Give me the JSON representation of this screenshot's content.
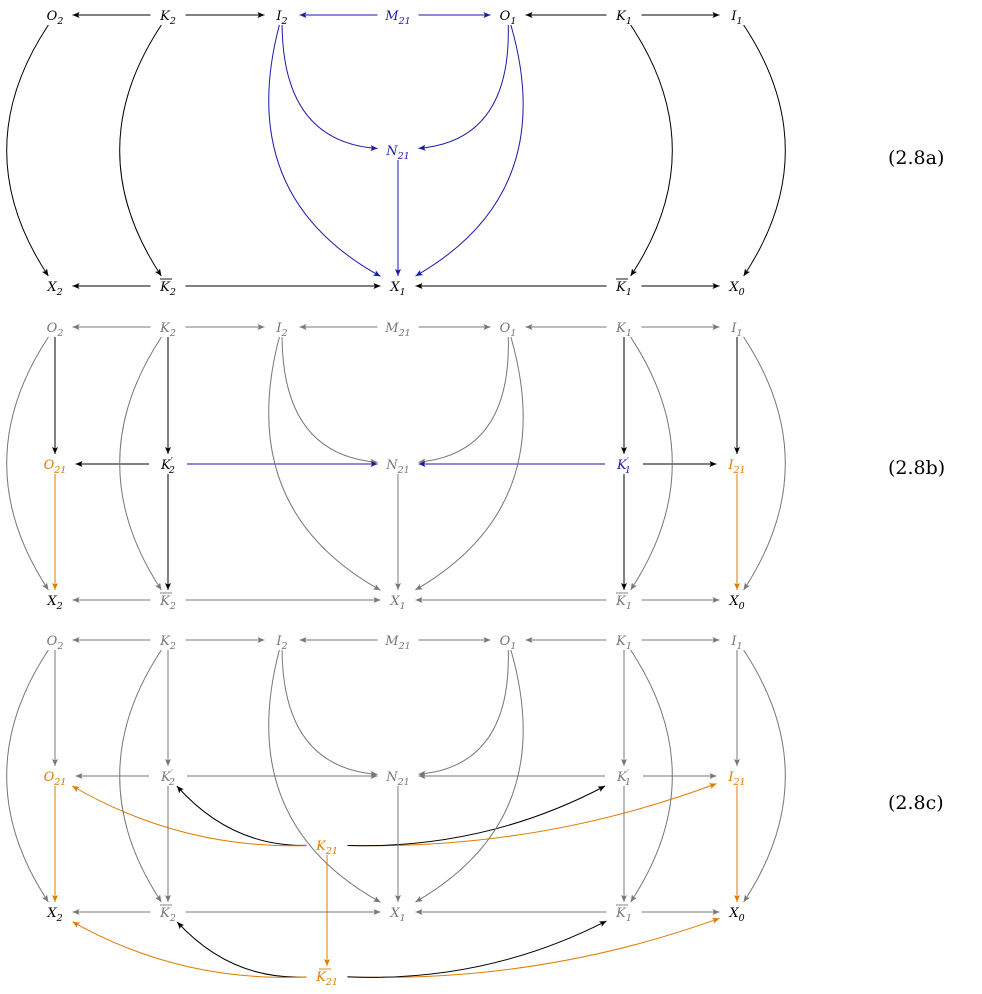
{
  "colors": {
    "black": "#000000",
    "blue": "#1a1aad",
    "orange": "#e07b00",
    "gray": "#777777"
  },
  "equation_labels": {
    "a": "(2.8a)",
    "b": "(2.8b)",
    "c": "(2.8c)"
  },
  "labels": {
    "O2": {
      "base": "O",
      "sub": "2"
    },
    "K2": {
      "base": "K",
      "sub": "2"
    },
    "I2": {
      "base": "I",
      "sub": "2"
    },
    "M21": {
      "base": "M",
      "sub": "21"
    },
    "O1": {
      "base": "O",
      "sub": "1"
    },
    "K1": {
      "base": "K",
      "sub": "1"
    },
    "I1": {
      "base": "I",
      "sub": "1"
    },
    "N21": {
      "base": "N",
      "sub": "21"
    },
    "X2": {
      "base": "X",
      "sub": "2"
    },
    "Kb2": {
      "base": "K",
      "sub": "2",
      "bar": true
    },
    "X1": {
      "base": "X",
      "sub": "1"
    },
    "Kb1": {
      "base": "K",
      "sub": "1",
      "bar": true
    },
    "X0": {
      "base": "X",
      "sub": "0"
    },
    "O21": {
      "base": "O",
      "sub": "21"
    },
    "Kp2": {
      "base": "K",
      "sub": "2",
      "prime": true
    },
    "Kp1": {
      "base": "K",
      "sub": "1",
      "prime": true
    },
    "I21": {
      "base": "I",
      "sub": "21"
    },
    "K21": {
      "base": "K",
      "sub": "21"
    },
    "Kb21": {
      "base": "K",
      "sub": "21",
      "bar": true
    }
  },
  "diagrams": [
    {
      "id": "2.8a",
      "nodes": {
        "O2": "black",
        "K2": "black",
        "I2": "black",
        "M21": "blue",
        "O1": "black",
        "K1": "black",
        "I1": "black",
        "N21": "blue",
        "X2": "black",
        "Kb2": "black",
        "X1": "black",
        "Kb1": "black",
        "X0": "black"
      },
      "edges": [
        {
          "from": "K2",
          "to": "O2",
          "color": "black"
        },
        {
          "from": "K2",
          "to": "I2",
          "color": "black"
        },
        {
          "from": "M21",
          "to": "I2",
          "color": "blue"
        },
        {
          "from": "M21",
          "to": "O1",
          "color": "blue"
        },
        {
          "from": "K1",
          "to": "O1",
          "color": "black"
        },
        {
          "from": "K1",
          "to": "I1",
          "color": "black"
        },
        {
          "from": "Kb2",
          "to": "X2",
          "color": "black"
        },
        {
          "from": "Kb2",
          "to": "X1",
          "color": "black"
        },
        {
          "from": "Kb1",
          "to": "X1",
          "color": "black"
        },
        {
          "from": "Kb1",
          "to": "X0",
          "color": "black"
        },
        {
          "from": "O2",
          "to": "X2",
          "color": "black",
          "bend": "left"
        },
        {
          "from": "K2",
          "to": "Kb2",
          "color": "black",
          "bend": "left"
        },
        {
          "from": "K1",
          "to": "Kb1",
          "color": "black",
          "bend": "right"
        },
        {
          "from": "I1",
          "to": "X0",
          "color": "black",
          "bend": "right"
        },
        {
          "from": "I2",
          "to": "N21",
          "color": "blue",
          "bend": "inner"
        },
        {
          "from": "O1",
          "to": "N21",
          "color": "blue",
          "bend": "inner"
        },
        {
          "from": "N21",
          "to": "X1",
          "color": "blue"
        },
        {
          "from": "I2",
          "to": "X1",
          "color": "blue",
          "bend": "outer"
        },
        {
          "from": "O1",
          "to": "X1",
          "color": "blue",
          "bend": "outer"
        }
      ]
    },
    {
      "id": "2.8b",
      "nodes": {
        "O2": "gray",
        "K2": "gray",
        "I2": "gray",
        "M21": "gray",
        "O1": "gray",
        "K1": "gray",
        "I1": "gray",
        "O21": "orange",
        "Kp2": "black",
        "N21": "gray",
        "Kp1": "blue",
        "I21": "orange",
        "X2": "black",
        "Kb2": "gray",
        "X1": "gray",
        "Kb1": "gray",
        "X0": "black"
      },
      "edges": [
        {
          "from": "K2",
          "to": "O2",
          "color": "gray"
        },
        {
          "from": "K2",
          "to": "I2",
          "color": "gray"
        },
        {
          "from": "M21",
          "to": "I2",
          "color": "gray"
        },
        {
          "from": "M21",
          "to": "O1",
          "color": "gray"
        },
        {
          "from": "K1",
          "to": "O1",
          "color": "gray"
        },
        {
          "from": "K1",
          "to": "I1",
          "color": "gray"
        },
        {
          "from": "Kb2",
          "to": "X2",
          "color": "gray"
        },
        {
          "from": "Kb2",
          "to": "X1",
          "color": "gray"
        },
        {
          "from": "Kb1",
          "to": "X1",
          "color": "gray"
        },
        {
          "from": "Kb1",
          "to": "X0",
          "color": "gray"
        },
        {
          "from": "O2",
          "to": "X2",
          "color": "gray",
          "bend": "left"
        },
        {
          "from": "K2",
          "to": "Kb2",
          "color": "gray",
          "bend": "left"
        },
        {
          "from": "K1",
          "to": "Kb1",
          "color": "gray",
          "bend": "right"
        },
        {
          "from": "I1",
          "to": "X0",
          "color": "gray",
          "bend": "right"
        },
        {
          "from": "I2",
          "to": "N21",
          "color": "gray",
          "bend": "inner"
        },
        {
          "from": "O1",
          "to": "N21",
          "color": "gray",
          "bend": "inner"
        },
        {
          "from": "N21",
          "to": "X1",
          "color": "gray"
        },
        {
          "from": "I2",
          "to": "X1",
          "color": "gray",
          "bend": "outer"
        },
        {
          "from": "O1",
          "to": "X1",
          "color": "gray",
          "bend": "outer"
        },
        {
          "from": "O2",
          "to": "O21",
          "color": "black"
        },
        {
          "from": "K2",
          "to": "Kp2",
          "color": "black"
        },
        {
          "from": "K1",
          "to": "Kp1",
          "color": "black"
        },
        {
          "from": "I1",
          "to": "I21",
          "color": "black"
        },
        {
          "from": "Kp2",
          "to": "O21",
          "color": "black"
        },
        {
          "from": "Kp2",
          "to": "N21",
          "color": "blue"
        },
        {
          "from": "Kp1",
          "to": "N21",
          "color": "blue"
        },
        {
          "from": "Kp1",
          "to": "I21",
          "color": "black"
        },
        {
          "from": "O21",
          "to": "X2",
          "color": "orange"
        },
        {
          "from": "Kp2",
          "to": "Kb2",
          "color": "black"
        },
        {
          "from": "Kp1",
          "to": "Kb1",
          "color": "black"
        },
        {
          "from": "I21",
          "to": "X0",
          "color": "orange"
        }
      ]
    },
    {
      "id": "2.8c",
      "nodes": {
        "O2": "gray",
        "K2": "gray",
        "I2": "gray",
        "M21": "gray",
        "O1": "gray",
        "K1": "gray",
        "I1": "gray",
        "O21": "orange",
        "Kp2": "gray",
        "N21": "gray",
        "Kp1": "gray",
        "I21": "orange",
        "K21": "orange",
        "X2": "black",
        "Kb2": "gray",
        "X1": "gray",
        "Kb1": "gray",
        "X0": "black",
        "Kb21": "orange"
      },
      "edges": [
        {
          "from": "K2",
          "to": "O2",
          "color": "gray"
        },
        {
          "from": "K2",
          "to": "I2",
          "color": "gray"
        },
        {
          "from": "M21",
          "to": "I2",
          "color": "gray"
        },
        {
          "from": "M21",
          "to": "O1",
          "color": "gray"
        },
        {
          "from": "K1",
          "to": "O1",
          "color": "gray"
        },
        {
          "from": "K1",
          "to": "I1",
          "color": "gray"
        },
        {
          "from": "Kb2",
          "to": "X2",
          "color": "gray"
        },
        {
          "from": "Kb2",
          "to": "X1",
          "color": "gray"
        },
        {
          "from": "Kb1",
          "to": "X1",
          "color": "gray"
        },
        {
          "from": "Kb1",
          "to": "X0",
          "color": "gray"
        },
        {
          "from": "O2",
          "to": "X2",
          "color": "gray",
          "bend": "left"
        },
        {
          "from": "K2",
          "to": "Kb2",
          "color": "gray",
          "bend": "left"
        },
        {
          "from": "K1",
          "to": "Kb1",
          "color": "gray",
          "bend": "right"
        },
        {
          "from": "I1",
          "to": "X0",
          "color": "gray",
          "bend": "right"
        },
        {
          "from": "I2",
          "to": "N21",
          "color": "gray",
          "bend": "inner"
        },
        {
          "from": "O1",
          "to": "N21",
          "color": "gray",
          "bend": "inner"
        },
        {
          "from": "N21",
          "to": "X1",
          "color": "gray"
        },
        {
          "from": "I2",
          "to": "X1",
          "color": "gray",
          "bend": "outer"
        },
        {
          "from": "O1",
          "to": "X1",
          "color": "gray",
          "bend": "outer"
        },
        {
          "from": "O2",
          "to": "O21",
          "color": "gray"
        },
        {
          "from": "K2",
          "to": "Kp2",
          "color": "gray"
        },
        {
          "from": "K1",
          "to": "Kp1",
          "color": "gray"
        },
        {
          "from": "I1",
          "to": "I21",
          "color": "gray"
        },
        {
          "from": "Kp2",
          "to": "O21",
          "color": "gray"
        },
        {
          "from": "Kp2",
          "to": "N21",
          "color": "gray"
        },
        {
          "from": "Kp1",
          "to": "N21",
          "color": "gray"
        },
        {
          "from": "Kp1",
          "to": "I21",
          "color": "gray"
        },
        {
          "from": "O21",
          "to": "X2",
          "color": "orange"
        },
        {
          "from": "Kp2",
          "to": "Kb2",
          "color": "gray"
        },
        {
          "from": "Kp1",
          "to": "Kb1",
          "color": "gray"
        },
        {
          "from": "I21",
          "to": "X0",
          "color": "orange"
        },
        {
          "from": "K21",
          "to": "O21",
          "color": "orange",
          "bend": "down"
        },
        {
          "from": "K21",
          "to": "Kp2",
          "color": "black",
          "bend": "down"
        },
        {
          "from": "K21",
          "to": "Kp1",
          "color": "black",
          "bend": "down"
        },
        {
          "from": "K21",
          "to": "I21",
          "color": "orange",
          "bend": "down"
        },
        {
          "from": "K21",
          "to": "Kb21",
          "color": "orange"
        },
        {
          "from": "Kb21",
          "to": "X2",
          "color": "orange",
          "bend": "down"
        },
        {
          "from": "Kb21",
          "to": "Kb2",
          "color": "black",
          "bend": "down"
        },
        {
          "from": "Kb21",
          "to": "Kb1",
          "color": "black",
          "bend": "down"
        },
        {
          "from": "Kb21",
          "to": "X0",
          "color": "orange",
          "bend": "down"
        }
      ]
    }
  ]
}
